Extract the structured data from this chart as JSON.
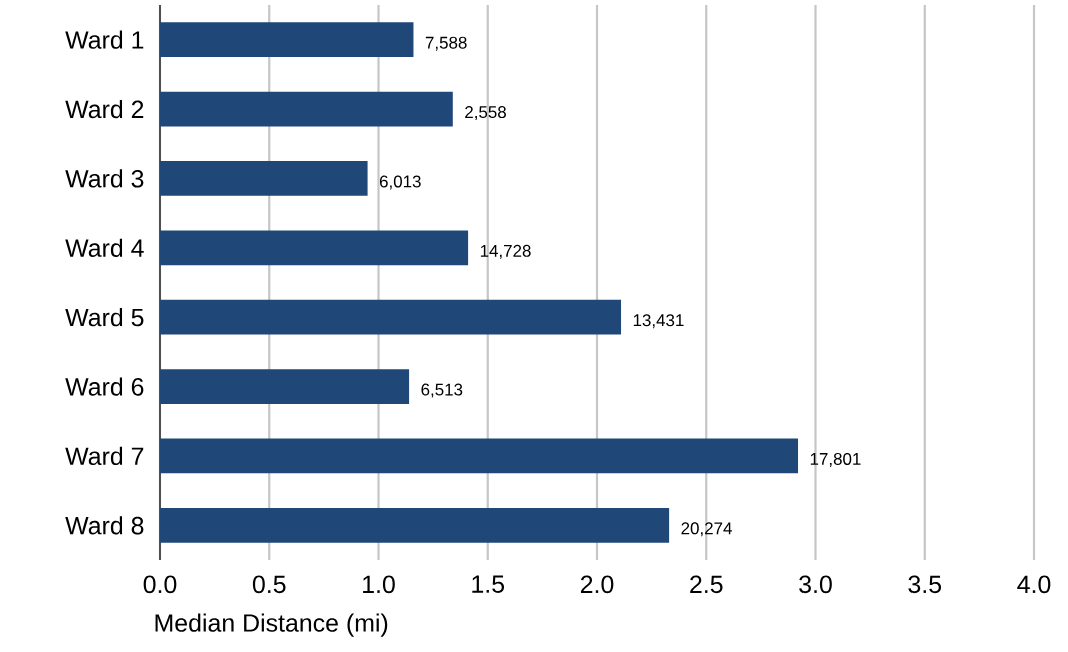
{
  "chart_data": {
    "type": "bar",
    "orientation": "horizontal",
    "xlabel": "Median Distance (mi)",
    "categories": [
      "Ward 1",
      "Ward 2",
      "Ward 3",
      "Ward 4",
      "Ward 5",
      "Ward 6",
      "Ward 7",
      "Ward 8"
    ],
    "values": [
      1.16,
      1.34,
      0.95,
      1.41,
      2.11,
      1.14,
      2.92,
      2.33
    ],
    "annotations": [
      {
        "text": "7,588",
        "x": 1.16,
        "y": "Ward 1"
      },
      {
        "text": "2,558",
        "x": 1.34,
        "y": "Ward 2"
      },
      {
        "text": "6,013",
        "x": 0.95,
        "y": "Ward 3"
      },
      {
        "text": "14,728",
        "x": 1.41,
        "y": "Ward 4"
      },
      {
        "text": "13,431",
        "x": 2.11,
        "y": "Ward 5"
      },
      {
        "text": "6,513",
        "x": 1.14,
        "y": "Ward 6"
      },
      {
        "text": "17,801",
        "x": 2.92,
        "y": "Ward 7"
      },
      {
        "text": "20,274",
        "x": 2.33,
        "y": "Ward 8"
      }
    ],
    "color": "#1f4778",
    "xlim": [
      0,
      4
    ],
    "xticks": [
      {
        "value": 0,
        "label": "0.0"
      },
      {
        "value": 0.5,
        "label": "0.5"
      },
      {
        "value": 1,
        "label": "1.0"
      },
      {
        "value": 1.5,
        "label": "1.5"
      },
      {
        "value": 2,
        "label": "2.0"
      },
      {
        "value": 2.5,
        "label": "2.5"
      },
      {
        "value": 3,
        "label": "3.0"
      },
      {
        "value": 3.5,
        "label": "3.5"
      },
      {
        "value": 4,
        "label": "4.0"
      }
    ],
    "grid": "x"
  }
}
